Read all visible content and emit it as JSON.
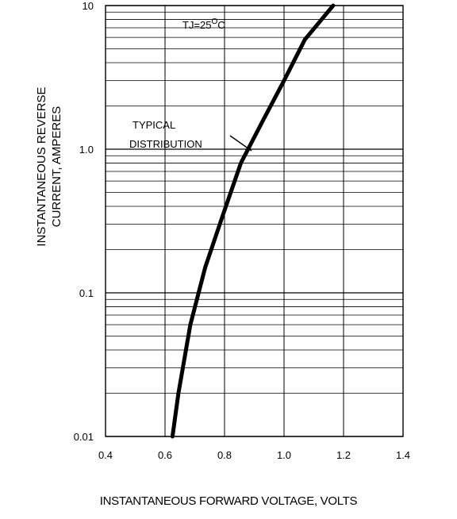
{
  "chart_data": {
    "type": "line",
    "xlabel": "INSTANTANEOUS FORWARD VOLTAGE, VOLTS",
    "ylabel_line1": "INSTANTANEOUS REVERSE",
    "ylabel_line2": "CURRENT, AMPERES",
    "x_scale": "linear",
    "y_scale": "log",
    "xlim": [
      0.4,
      1.4
    ],
    "ylim": [
      0.01,
      10
    ],
    "x_ticks": [
      0.4,
      0.6,
      0.8,
      1.0,
      1.2,
      1.4
    ],
    "x_tick_labels": [
      "0.4",
      "0.6",
      "0.8",
      "1.0",
      "1.2",
      "1.4"
    ],
    "y_ticks": [
      0.01,
      0.1,
      1.0,
      10
    ],
    "y_tick_labels": [
      "0.01",
      "0.1",
      "1.0",
      "10"
    ],
    "grid": true,
    "annotations": {
      "condition_main": "TJ=25",
      "condition_sup": "O",
      "condition_unit": "C",
      "typical_line1": "TYPICAL",
      "typical_line2": "DISTRIBUTION"
    },
    "series": [
      {
        "x": [
          0.625,
          0.645,
          0.685,
          0.735,
          0.795,
          0.855,
          0.93,
          1.0,
          1.07,
          1.165
        ],
        "y": [
          0.01,
          0.02,
          0.06,
          0.15,
          0.35,
          0.8,
          1.6,
          3.0,
          5.8,
          10.0
        ]
      }
    ]
  }
}
